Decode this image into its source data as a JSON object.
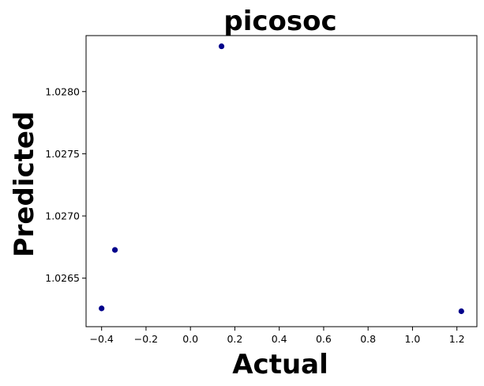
{
  "chart_data": {
    "type": "scatter",
    "title": "picosoc",
    "xlabel": "Actual",
    "ylabel": "Predicted",
    "xlim": [
      -0.47,
      1.29
    ],
    "ylim": [
      1.02611,
      1.02845
    ],
    "xticks": [
      -0.4,
      -0.2,
      0.0,
      0.2,
      0.4,
      0.6,
      0.8,
      1.0,
      1.2
    ],
    "xtick_labels": [
      "−0.4",
      "−0.2",
      "0.0",
      "0.2",
      "0.4",
      "0.6",
      "0.8",
      "1.0",
      "1.2"
    ],
    "yticks": [
      1.0265,
      1.027,
      1.0275,
      1.028
    ],
    "ytick_labels": [
      "1.0265",
      "1.0270",
      "1.0275",
      "1.0280"
    ],
    "grid": false,
    "marker_color": "#00008b",
    "points": [
      {
        "x": -0.4,
        "y": 1.026257
      },
      {
        "x": -0.34,
        "y": 1.026727
      },
      {
        "x": 0.14,
        "y": 1.028364
      },
      {
        "x": 1.22,
        "y": 1.026234
      }
    ]
  }
}
